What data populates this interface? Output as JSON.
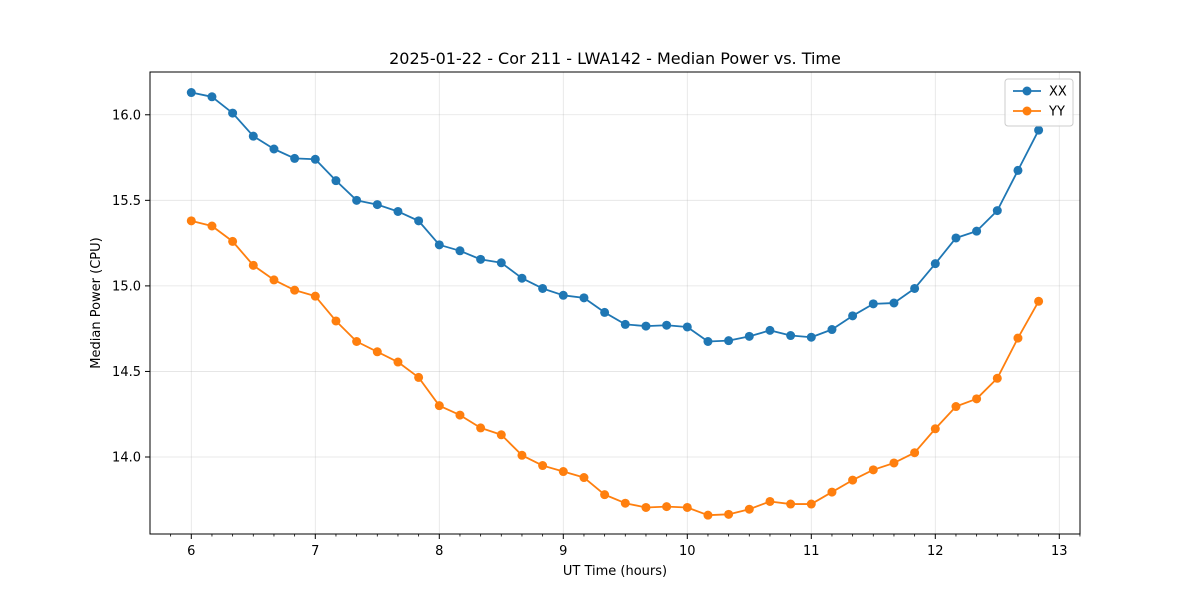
{
  "chart_data": {
    "type": "line",
    "title": "2025-01-22 - Cor 211 - LWA142 - Median Power vs. Time",
    "xlabel": "UT Time (hours)",
    "ylabel": "Median Power (CPU)",
    "xlim": [
      5.667,
      13.167
    ],
    "ylim": [
      13.55,
      16.25
    ],
    "xticks": [
      6,
      7,
      8,
      9,
      10,
      11,
      12,
      13
    ],
    "xtick_labels": [
      "6",
      "7",
      "8",
      "9",
      "10",
      "11",
      "12",
      "13"
    ],
    "yticks": [
      14.0,
      14.5,
      15.0,
      15.5,
      16.0
    ],
    "ytick_labels": [
      "14.0",
      "14.5",
      "15.0",
      "15.5",
      "16.0"
    ],
    "grid": true,
    "legend_position": "top-right",
    "x": [
      6.0,
      6.1667,
      6.3333,
      6.5,
      6.6667,
      6.8333,
      7.0,
      7.1667,
      7.3333,
      7.5,
      7.6667,
      7.8333,
      8.0,
      8.1667,
      8.3333,
      8.5,
      8.6667,
      8.8333,
      9.0,
      9.1667,
      9.3333,
      9.5,
      9.6667,
      9.8333,
      10.0,
      10.1667,
      10.3333,
      10.5,
      10.6667,
      10.8333,
      11.0,
      11.1667,
      11.3333,
      11.5,
      11.6667,
      11.8333,
      12.0,
      12.1667,
      12.3333,
      12.5,
      12.6667,
      12.8333
    ],
    "series": [
      {
        "name": "XX",
        "color": "#1f77b4",
        "values": [
          16.13,
          16.105,
          16.01,
          15.875,
          15.8,
          15.745,
          15.74,
          15.615,
          15.5,
          15.475,
          15.435,
          15.38,
          15.24,
          15.205,
          15.155,
          15.135,
          15.045,
          14.985,
          14.945,
          14.93,
          14.845,
          14.775,
          14.765,
          14.77,
          14.76,
          14.675,
          14.68,
          14.705,
          14.74,
          14.71,
          14.7,
          14.745,
          14.825,
          14.895,
          14.9,
          14.985,
          15.13,
          15.28,
          15.32,
          15.44,
          15.675,
          15.91
        ]
      },
      {
        "name": "YY",
        "color": "#ff7f0e",
        "values": [
          15.38,
          15.35,
          15.26,
          15.12,
          15.035,
          14.975,
          14.94,
          14.795,
          14.675,
          14.615,
          14.555,
          14.465,
          14.3,
          14.245,
          14.17,
          14.13,
          14.01,
          13.95,
          13.915,
          13.88,
          13.78,
          13.73,
          13.705,
          13.71,
          13.705,
          13.66,
          13.665,
          13.695,
          13.74,
          13.725,
          13.725,
          13.795,
          13.865,
          13.925,
          13.965,
          14.025,
          14.165,
          14.295,
          14.34,
          14.46,
          14.695,
          14.91
        ]
      }
    ]
  }
}
